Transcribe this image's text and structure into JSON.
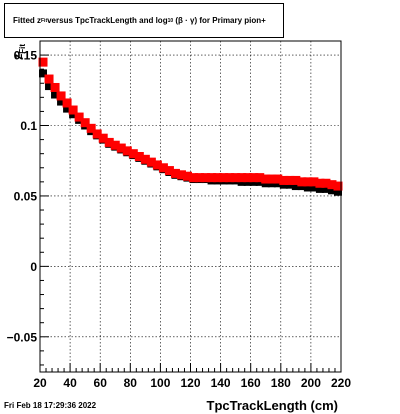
{
  "title": {
    "prefix": "Fitted  z",
    "sub1": "Fit",
    "middle": "  versus TpcTrackLength and log",
    "sub2": "10",
    "suffix": "(β · γ) for Primary pion+"
  },
  "footer": "Fri Feb 18 17:29:36 2022",
  "colors": {
    "series_black": "#000000",
    "series_red": "#ff0000",
    "grid": "#000000"
  },
  "chart_data": {
    "type": "scatter",
    "title": "Fitted  zFit  versus TpcTrackLength and log10(β · γ) for Primary pion+",
    "xlabel": "TpcTrackLength (cm)",
    "ylabel": "z_Fit",
    "xlim": [
      20,
      220
    ],
    "ylim": [
      -0.075,
      0.16
    ],
    "grid": true,
    "x_ticks": [
      20,
      40,
      60,
      80,
      100,
      120,
      140,
      160,
      180,
      200,
      220
    ],
    "x_tick_labels": [
      "20",
      "40",
      "60",
      "80",
      "100",
      "120",
      "140",
      "160",
      "180",
      "200",
      "220"
    ],
    "y_ticks": [
      -0.05,
      0,
      0.05,
      0.1,
      0.15
    ],
    "y_tick_labels": [
      "−0.05",
      "0",
      "0.05",
      "0.1",
      "0.15"
    ],
    "x": [
      22,
      26,
      30,
      34,
      38,
      42,
      46,
      50,
      54,
      58,
      62,
      66,
      70,
      74,
      78,
      82,
      86,
      90,
      94,
      98,
      102,
      106,
      110,
      114,
      118,
      122,
      126,
      130,
      134,
      138,
      142,
      146,
      150,
      154,
      158,
      162,
      166,
      170,
      174,
      178,
      182,
      186,
      190,
      194,
      198,
      202,
      206,
      210,
      214,
      218
    ],
    "series": [
      {
        "color": "#000000",
        "values": [
          0.137,
          0.128,
          0.122,
          0.117,
          0.112,
          0.108,
          0.104,
          0.1,
          0.096,
          0.093,
          0.09,
          0.087,
          0.085,
          0.083,
          0.081,
          0.079,
          0.077,
          0.075,
          0.073,
          0.071,
          0.069,
          0.067,
          0.065,
          0.064,
          0.063,
          0.062,
          0.062,
          0.062,
          0.061,
          0.061,
          0.061,
          0.061,
          0.061,
          0.06,
          0.06,
          0.06,
          0.06,
          0.059,
          0.059,
          0.059,
          0.058,
          0.058,
          0.057,
          0.057,
          0.056,
          0.056,
          0.055,
          0.055,
          0.054,
          0.053
        ]
      },
      {
        "color": "#ff0000",
        "values": [
          0.145,
          0.133,
          0.127,
          0.121,
          0.116,
          0.111,
          0.106,
          0.102,
          0.098,
          0.094,
          0.091,
          0.088,
          0.086,
          0.084,
          0.082,
          0.08,
          0.078,
          0.076,
          0.074,
          0.072,
          0.07,
          0.068,
          0.066,
          0.065,
          0.064,
          0.063,
          0.063,
          0.063,
          0.063,
          0.063,
          0.063,
          0.063,
          0.063,
          0.063,
          0.063,
          0.063,
          0.063,
          0.062,
          0.062,
          0.062,
          0.061,
          0.061,
          0.061,
          0.06,
          0.06,
          0.06,
          0.059,
          0.059,
          0.058,
          0.057
        ]
      }
    ]
  }
}
